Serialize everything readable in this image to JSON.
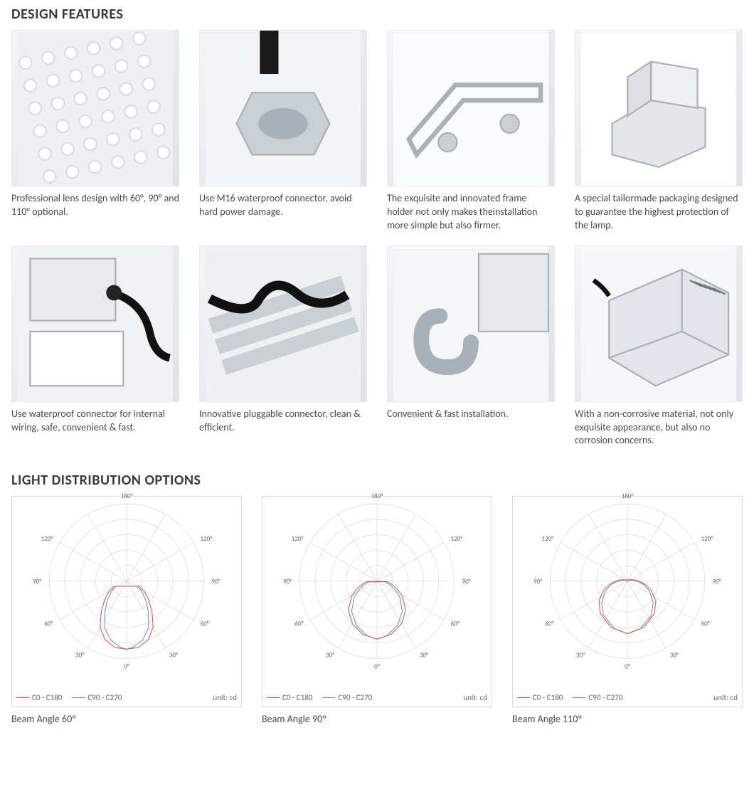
{
  "sections": {
    "features_title": "DESIGN FEATURES",
    "distribution_title": "LIGHT DISTRIBUTION OPTIONS"
  },
  "features": [
    {
      "caption": "Professional lens design with 60°, 90° and 110° optional."
    },
    {
      "caption": "Use M16 waterproof connector, avoid hard power damage."
    },
    {
      "caption": "The exquisite and innovated frame holder not only makes theinstallation more simple but also firmer."
    },
    {
      "caption": "A special tailormade packaging designed to guarantee the highest protection of the lamp."
    },
    {
      "caption": "Use waterproof connector for internal wiring, safe, convenient & fast."
    },
    {
      "caption": "Innovative pluggable connector, clean & efficient."
    },
    {
      "caption": "Convenient & fast installation."
    },
    {
      "caption": "With a non-corrosive material, not only exquisite appearance, but also no corrosion concerns."
    }
  ],
  "polar": {
    "grid_color": "#dcdcdc",
    "axis_label_color": "#666666",
    "axis_label_fontsize": 9,
    "angle_ticks": [
      180,
      120,
      90,
      60,
      30,
      0
    ],
    "angle_tick_each_side": [
      120,
      90,
      60,
      30
    ],
    "top_label": "180°",
    "bottom_label": "0°",
    "radial_rings": 5,
    "series_colors": {
      "c0": "#e74c3c",
      "c90": "#5b8fd6"
    },
    "legend_c0": "C0 - C180",
    "legend_c90": "C90 - C270",
    "unit_label": "unit: cd"
  },
  "distributions": [
    {
      "label": "Beam Angle 60º",
      "c0_points": [
        [
          -68,
          0.2
        ],
        [
          -60,
          0.3
        ],
        [
          -50,
          0.42
        ],
        [
          -40,
          0.58
        ],
        [
          -30,
          0.78
        ],
        [
          -20,
          0.92
        ],
        [
          -10,
          0.99
        ],
        [
          0,
          1.0
        ],
        [
          10,
          0.99
        ],
        [
          20,
          0.92
        ],
        [
          30,
          0.78
        ],
        [
          40,
          0.58
        ],
        [
          50,
          0.42
        ],
        [
          60,
          0.3
        ],
        [
          68,
          0.2
        ]
      ],
      "c90_points": [
        [
          -65,
          0.18
        ],
        [
          -55,
          0.28
        ],
        [
          -45,
          0.4
        ],
        [
          -35,
          0.56
        ],
        [
          -25,
          0.76
        ],
        [
          -15,
          0.9
        ],
        [
          -5,
          0.98
        ],
        [
          0,
          1.0
        ],
        [
          5,
          0.98
        ],
        [
          15,
          0.9
        ],
        [
          25,
          0.76
        ],
        [
          35,
          0.56
        ],
        [
          45,
          0.4
        ],
        [
          55,
          0.28
        ],
        [
          65,
          0.18
        ]
      ],
      "peak_radius": 0.88
    },
    {
      "label": "Beam Angle 90º",
      "c0_points": [
        [
          -88,
          0.16
        ],
        [
          -80,
          0.24
        ],
        [
          -70,
          0.36
        ],
        [
          -60,
          0.5
        ],
        [
          -45,
          0.7
        ],
        [
          -30,
          0.85
        ],
        [
          -15,
          0.95
        ],
        [
          0,
          1.0
        ],
        [
          15,
          0.95
        ],
        [
          30,
          0.85
        ],
        [
          45,
          0.7
        ],
        [
          60,
          0.5
        ],
        [
          70,
          0.36
        ],
        [
          80,
          0.24
        ],
        [
          88,
          0.16
        ]
      ],
      "c90_points": [
        [
          -85,
          0.14
        ],
        [
          -75,
          0.22
        ],
        [
          -65,
          0.34
        ],
        [
          -55,
          0.48
        ],
        [
          -40,
          0.68
        ],
        [
          -25,
          0.84
        ],
        [
          -10,
          0.96
        ],
        [
          0,
          1.0
        ],
        [
          10,
          0.96
        ],
        [
          25,
          0.84
        ],
        [
          40,
          0.68
        ],
        [
          55,
          0.48
        ],
        [
          65,
          0.34
        ],
        [
          75,
          0.22
        ],
        [
          85,
          0.14
        ]
      ],
      "peak_radius": 0.75
    },
    {
      "label": "Beam Angle 110º",
      "c0_points": [
        [
          -100,
          0.14
        ],
        [
          -90,
          0.22
        ],
        [
          -80,
          0.34
        ],
        [
          -70,
          0.48
        ],
        [
          -55,
          0.66
        ],
        [
          -40,
          0.8
        ],
        [
          -20,
          0.93
        ],
        [
          0,
          1.0
        ],
        [
          20,
          0.93
        ],
        [
          40,
          0.8
        ],
        [
          55,
          0.66
        ],
        [
          70,
          0.48
        ],
        [
          80,
          0.34
        ],
        [
          90,
          0.22
        ],
        [
          100,
          0.14
        ]
      ],
      "c90_points": [
        [
          -98,
          0.12
        ],
        [
          -88,
          0.2
        ],
        [
          -78,
          0.32
        ],
        [
          -66,
          0.46
        ],
        [
          -50,
          0.64
        ],
        [
          -35,
          0.79
        ],
        [
          -15,
          0.94
        ],
        [
          0,
          1.0
        ],
        [
          15,
          0.94
        ],
        [
          35,
          0.79
        ],
        [
          50,
          0.64
        ],
        [
          66,
          0.46
        ],
        [
          78,
          0.32
        ],
        [
          88,
          0.2
        ],
        [
          98,
          0.12
        ]
      ],
      "peak_radius": 0.68
    }
  ]
}
